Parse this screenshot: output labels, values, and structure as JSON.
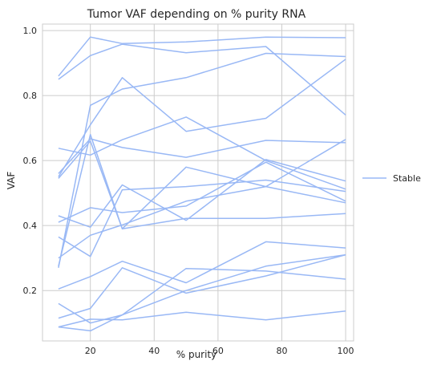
{
  "chart_data": {
    "type": "line",
    "title": "Tumor VAF depending on % purity RNA",
    "xlabel": "% purity",
    "ylabel": "VAF",
    "xlim": [
      5,
      102.5
    ],
    "ylim": [
      0.045,
      1.02
    ],
    "xticks": [
      20,
      40,
      60,
      80,
      100
    ],
    "yticks": [
      0.2,
      0.4,
      0.6,
      0.8,
      1.0
    ],
    "xtick_labels": [
      "20",
      "40",
      "60",
      "80",
      "100"
    ],
    "ytick_labels": [
      "0.2",
      "0.4",
      "0.6",
      "0.8",
      "1.0"
    ],
    "grid": true,
    "legend": {
      "placement": "outside-right",
      "entries": [
        "Stable"
      ]
    },
    "line_color": "#99b8f5",
    "x": [
      10,
      20,
      30,
      50,
      75,
      100
    ],
    "series": [
      {
        "name": "Stable",
        "values": [
          0.86,
          0.98,
          0.96,
          0.965,
          0.98,
          0.978
        ]
      },
      {
        "values": [
          0.85,
          0.923,
          0.958,
          0.932,
          0.951,
          0.74
        ]
      },
      {
        "values": [
          0.27,
          0.77,
          0.82,
          0.855,
          0.93,
          0.92
        ]
      },
      {
        "values": [
          0.55,
          0.71,
          0.855,
          0.69,
          0.73,
          0.912
        ]
      },
      {
        "values": [
          0.638,
          0.617,
          0.664,
          0.734,
          0.6,
          0.512
        ]
      },
      {
        "values": [
          0.56,
          0.667,
          0.64,
          0.61,
          0.662,
          0.655
        ]
      },
      {
        "values": [
          0.275,
          0.68,
          0.39,
          0.58,
          0.52,
          0.665
        ]
      },
      {
        "values": [
          0.43,
          0.395,
          0.525,
          0.416,
          0.603,
          0.537
        ]
      },
      {
        "values": [
          0.365,
          0.305,
          0.51,
          0.52,
          0.54,
          0.505
        ]
      },
      {
        "values": [
          0.41,
          0.455,
          0.44,
          0.46,
          0.595,
          0.475
        ]
      },
      {
        "values": [
          0.545,
          0.66,
          0.39,
          0.422,
          0.422,
          0.437
        ]
      },
      {
        "values": [
          0.3,
          0.37,
          0.402,
          0.475,
          0.52,
          0.47
        ]
      },
      {
        "values": [
          0.205,
          0.243,
          0.29,
          0.224,
          0.35,
          0.331
        ]
      },
      {
        "values": [
          0.115,
          0.145,
          0.27,
          0.192,
          0.245,
          0.31
        ]
      },
      {
        "values": [
          0.16,
          0.1,
          0.125,
          0.268,
          0.26,
          0.235
        ]
      },
      {
        "values": [
          0.088,
          0.112,
          0.11,
          0.133,
          0.11,
          0.137
        ]
      },
      {
        "values": [
          0.088,
          0.076,
          0.125,
          0.2,
          0.275,
          0.31
        ]
      }
    ]
  }
}
